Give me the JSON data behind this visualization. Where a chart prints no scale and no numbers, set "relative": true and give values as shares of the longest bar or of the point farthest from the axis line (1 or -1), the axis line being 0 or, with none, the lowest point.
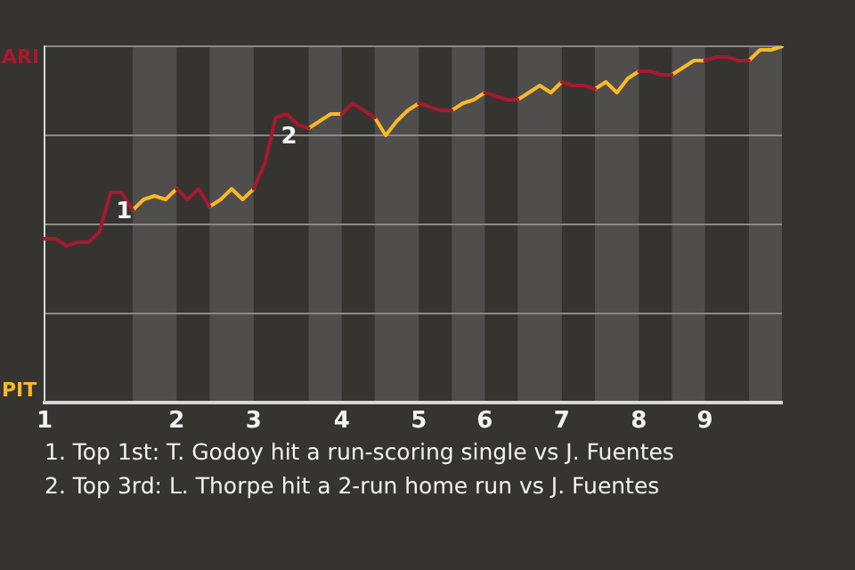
{
  "chart_data": {
    "type": "line",
    "relative": true,
    "grid": "y",
    "legend": false,
    "marker": "none",
    "line_style": "solid",
    "categories": [
      "1",
      null,
      null,
      null,
      null,
      null,
      null,
      null,
      null,
      null,
      null,
      null,
      "2",
      null,
      null,
      null,
      null,
      null,
      null,
      "3",
      null,
      null,
      null,
      null,
      null,
      null,
      null,
      "4",
      null,
      null,
      null,
      null,
      null,
      null,
      "5",
      null,
      null,
      null,
      null,
      null,
      "6",
      null,
      null,
      null,
      null,
      null,
      null,
      "7",
      null,
      null,
      null,
      null,
      null,
      null,
      "8",
      null,
      null,
      null,
      null,
      null,
      "9",
      null,
      null,
      null,
      null,
      null,
      null,
      null
    ],
    "series": [
      {
        "name": "ARI",
        "color": "#a6192e",
        "values": [
          0.46,
          0.46,
          0.44,
          0.45,
          0.45,
          0.48,
          0.59,
          0.59,
          0.54,
          null,
          null,
          null,
          0.6,
          0.57,
          0.6,
          0.55,
          null,
          null,
          null,
          0.6,
          0.67,
          0.8,
          0.81,
          0.78,
          0.77,
          null,
          null,
          0.81,
          0.84,
          0.82,
          0.8,
          null,
          null,
          null,
          0.84,
          0.83,
          0.82,
          0.82,
          null,
          null,
          0.87,
          0.86,
          0.85,
          0.85,
          null,
          null,
          null,
          0.9,
          0.89,
          0.89,
          0.88,
          null,
          null,
          null,
          0.93,
          0.93,
          0.92,
          0.92,
          null,
          null,
          0.96,
          0.97,
          0.97,
          0.96,
          0.96,
          null,
          null,
          null
        ]
      },
      {
        "name": "PIT",
        "color": "#fdb827",
        "values": [
          null,
          null,
          null,
          null,
          null,
          null,
          null,
          null,
          0.54,
          0.57,
          0.58,
          0.57,
          0.6,
          null,
          null,
          0.55,
          0.57,
          0.6,
          0.57,
          0.6,
          null,
          null,
          null,
          null,
          0.77,
          0.79,
          0.81,
          0.81,
          null,
          null,
          0.8,
          0.75,
          0.79,
          0.82,
          0.84,
          null,
          null,
          0.82,
          0.84,
          0.85,
          0.87,
          null,
          null,
          0.85,
          0.87,
          0.89,
          0.87,
          0.9,
          null,
          null,
          0.88,
          0.9,
          0.87,
          0.91,
          0.93,
          null,
          null,
          0.92,
          0.94,
          0.96,
          0.96,
          null,
          null,
          null,
          0.96,
          0.99,
          0.99,
          1
        ]
      }
    ],
    "annotations": [
      {
        "text": "1",
        "y": 0.59
      },
      {
        "text": "2",
        "y": 0.8
      },
      "1. Top 1st: T. Godoy hit a run-scoring single vs J. Fuentes",
      "2. Top 3rd: L. Thorpe hit a 2-run home run vs J. Fuentes"
    ]
  }
}
